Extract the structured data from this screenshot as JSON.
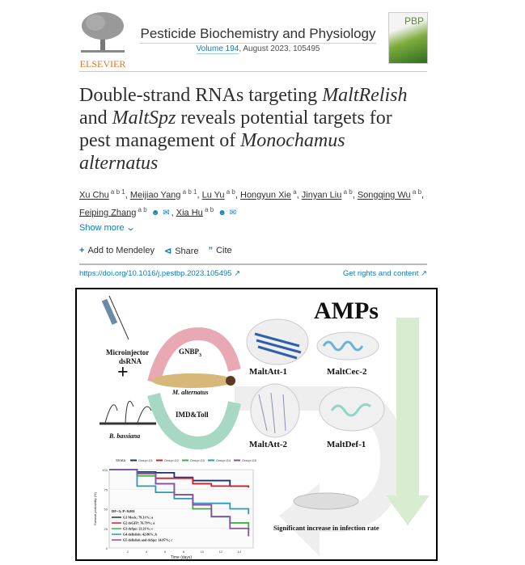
{
  "header": {
    "publisher": "ELSEVIER",
    "journal_title": "Pesticide Biochemistry and Physiology",
    "volume_link": "Volume 194",
    "issue_info": ", August 2023, 105495",
    "cover_text": "PBP"
  },
  "article": {
    "title_parts": [
      {
        "text": "Double-strand RNAs targeting ",
        "italic": false
      },
      {
        "text": "MaltRelish",
        "italic": true
      },
      {
        "text": " and ",
        "italic": false
      },
      {
        "text": "MaltSpz",
        "italic": true
      },
      {
        "text": " reveals potential targets for pest management of ",
        "italic": false
      },
      {
        "text": "Monochamus alternatus",
        "italic": true
      }
    ],
    "authors": [
      {
        "name": "Xu Chu",
        "sup": "a b 1",
        "icons": false
      },
      {
        "name": "Meijiao Yang",
        "sup": "a b 1",
        "icons": false
      },
      {
        "name": "Lu Yu",
        "sup": "a b",
        "icons": false
      },
      {
        "name": "Hongyun Xie",
        "sup": "a",
        "icons": false
      },
      {
        "name": "Jinyan Liu",
        "sup": "a b",
        "icons": false
      },
      {
        "name": "Songqing Wu",
        "sup": "a b",
        "icons": false
      },
      {
        "name": "Feiping Zhang",
        "sup": "a b",
        "icons": true
      },
      {
        "name": "Xia Hu",
        "sup": "a b",
        "icons": true
      }
    ],
    "show_more": "Show more",
    "actions": {
      "mendeley": "Add to Mendeley",
      "share": "Share",
      "cite": "Cite"
    },
    "doi": "https://doi.org/10.1016/j.pestbp.2023.105495",
    "rights": "Get rights and content"
  },
  "graphical_abstract": {
    "amps": "AMPs",
    "injector": "Microinjector",
    "dsrna": "dsRNA",
    "fungus": "B. bassiana",
    "gnbp": "GNBP",
    "gnbp_sub": "3",
    "larva": "M. alternatus",
    "pathway": "IMD&Toll",
    "proteins": [
      "MaltAtt-1",
      "MaltCec-2",
      "MaltAtt-2",
      "MaltDef-1"
    ],
    "infection": "Significant increase in infection rate",
    "survival_chart": {
      "type": "line",
      "legend_title": "Strata",
      "legend": [
        "Group=G1",
        "Group=G2",
        "Group=G3",
        "Group=G4",
        "Group=G5"
      ],
      "xlabel": "Time (days)",
      "ylabel": "Survival probability (%)",
      "xticks": [
        2,
        4,
        6,
        8,
        10,
        12,
        14
      ],
      "yticks": [
        0,
        25,
        50,
        75,
        100
      ],
      "xlim": [
        0,
        15.5
      ],
      "ylim": [
        0,
        100
      ],
      "stats": "DF=5; P<0.001",
      "annotations": [
        "G1 Mock: 79.31%; a",
        "G2 dsGFP: 76.79%; a",
        "G3 dsSpz: 23.21%; c",
        "G4 dsRelish: 42.86%; b",
        "G5 dsRelish and dsSpz: 14.87%; c"
      ],
      "x": [
        0,
        3,
        5,
        7,
        9,
        11,
        13,
        15
      ],
      "series": [
        {
          "name": "Group=G1",
          "color": "#1a2f6e",
          "values": [
            100,
            97,
            96,
            90,
            86,
            86,
            79,
            79
          ]
        },
        {
          "name": "Group=G2",
          "color": "#d11f2a",
          "values": [
            100,
            95,
            89,
            89,
            82,
            79,
            79,
            77
          ]
        },
        {
          "name": "Group=G3",
          "color": "#3cb33c",
          "values": [
            100,
            92,
            82,
            68,
            50,
            40,
            32,
            23
          ]
        },
        {
          "name": "Group=G4",
          "color": "#2a9bb5",
          "values": [
            100,
            79,
            71,
            63,
            57,
            57,
            50,
            43
          ]
        },
        {
          "name": "Group=G5",
          "color": "#8a4fa8",
          "values": [
            100,
            95,
            82,
            68,
            55,
            40,
            25,
            15
          ]
        }
      ]
    }
  }
}
